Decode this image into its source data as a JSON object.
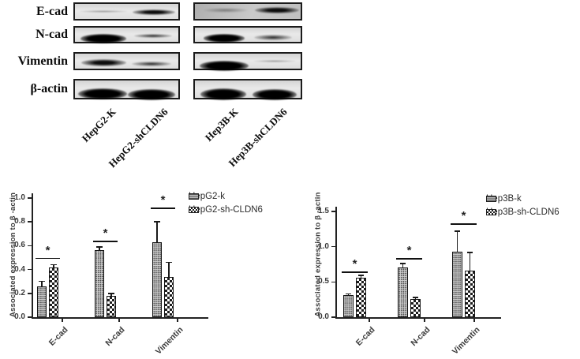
{
  "figure": {
    "background": "#ffffff",
    "ink_color": "#111111",
    "gray_fill": "#cecece",
    "blots": {
      "rows": [
        {
          "label": "E-cad",
          "panels": [
            [
              "faint",
              "strong"
            ],
            [
              "faint",
              "strong"
            ]
          ]
        },
        {
          "label": "N-cad",
          "panels": [
            [
              "very-strong",
              "medium"
            ],
            [
              "very-strong",
              "medium"
            ]
          ]
        },
        {
          "label": "Vimentin",
          "panels": [
            [
              "strong",
              "medium"
            ],
            [
              "very-strong",
              "faint"
            ]
          ]
        },
        {
          "label": "β-actin",
          "panels": [
            [
              "very-strong",
              "very-strong"
            ],
            [
              "very-strong",
              "very-strong"
            ]
          ]
        }
      ],
      "lane_labels": [
        "HepG2-K",
        "HepG2-shCLDN6",
        "Hep3B-K",
        "Hep3B-shCLDN6"
      ]
    }
  },
  "chart_data": [
    {
      "type": "bar",
      "title": "",
      "xlabel": "",
      "ylabel": "Associated expression to β -actin",
      "categories": [
        "E-cad",
        "N-cad",
        "Vimentin"
      ],
      "series": [
        {
          "name": "HepG2-k",
          "values": [
            0.26,
            0.56,
            0.63
          ],
          "errors": [
            0.04,
            0.03,
            0.17
          ]
        },
        {
          "name": "HepG2-sh-CLDN6",
          "values": [
            0.42,
            0.18,
            0.34
          ],
          "errors": [
            0.02,
            0.02,
            0.12
          ]
        }
      ],
      "ylim": [
        0,
        1.0
      ],
      "yticks": [
        0.0,
        0.2,
        0.4,
        0.6,
        0.8,
        1.0
      ],
      "significance": [
        {
          "category": "E-cad",
          "label": "*",
          "line_y": 0.5
        },
        {
          "category": "N-cad",
          "label": "*",
          "line_y": 0.64
        },
        {
          "category": "Vimentin",
          "label": "*",
          "line_y": 0.92
        }
      ],
      "legend_position": "top-right",
      "grid": false
    },
    {
      "type": "bar",
      "title": "",
      "xlabel": "",
      "ylabel": "Associated expression to β -actin",
      "categories": [
        "E-cad",
        "N-cad",
        "Vimentin"
      ],
      "series": [
        {
          "name": "Hep3B-k",
          "values": [
            0.31,
            0.71,
            0.93
          ],
          "errors": [
            0.02,
            0.05,
            0.29
          ]
        },
        {
          "name": "Hep3B-sh-CLDN6",
          "values": [
            0.56,
            0.26,
            0.66
          ],
          "errors": [
            0.03,
            0.02,
            0.26
          ]
        }
      ],
      "ylim": [
        0,
        1.5
      ],
      "yticks": [
        0.0,
        0.5,
        1.0,
        1.5
      ],
      "significance": [
        {
          "category": "E-cad",
          "label": "*",
          "line_y": 0.65
        },
        {
          "category": "N-cad",
          "label": "*",
          "line_y": 0.84
        },
        {
          "category": "Vimentin",
          "label": "*",
          "line_y": 1.33
        }
      ],
      "legend_position": "top-right",
      "grid": false
    }
  ]
}
